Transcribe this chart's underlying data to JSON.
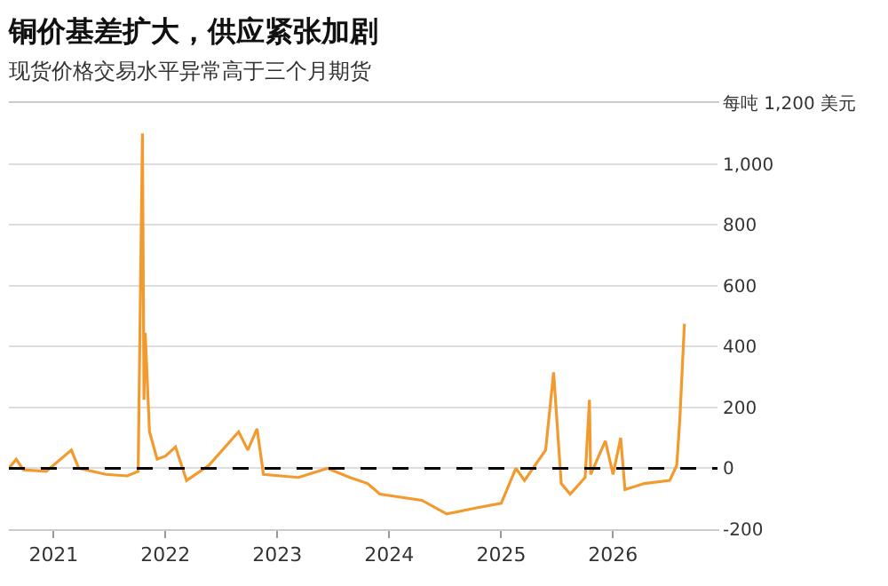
{
  "chart_data": {
    "type": "line",
    "title": "铜价基差扩大，供应紧张加剧",
    "subtitle": "现货价格交易水平异常高于三个月期货",
    "series": [
      {
        "color": "#f39a2e",
        "x": [
          "2020-08-08",
          "2020-09-01",
          "2020-09-24",
          "2020-12-08",
          "2021-02-28",
          "2021-03-24",
          "2021-06-20",
          "2021-08-29",
          "2021-10-04",
          "2021-10-18",
          "2021-10-23",
          "2021-10-27",
          "2021-11-10",
          "2021-12-05",
          "2022-01-01",
          "2022-02-03",
          "2022-03-11",
          "2022-05-23",
          "2022-08-28",
          "2022-09-27",
          "2022-10-27",
          "2022-11-17",
          "2023-03-11",
          "2023-06-14",
          "2023-08-26",
          "2023-10-23",
          "2023-12-02",
          "2024-04-17",
          "2024-07-07",
          "2024-10-12",
          "2025-01-01",
          "2025-02-18",
          "2025-03-18",
          "2025-05-26",
          "2025-06-21",
          "2025-07-16",
          "2025-08-14",
          "2025-10-02",
          "2025-10-16",
          "2025-10-20",
          "2025-12-07",
          "2026-01-01",
          "2026-01-26",
          "2026-02-09",
          "2026-04-13",
          "2026-07-05",
          "2026-07-28",
          "2026-08-07",
          "2026-08-22"
        ],
        "values": [
          0,
          30,
          -5,
          -10,
          60,
          0,
          -20,
          -25,
          -10,
          1100,
          225,
          445,
          120,
          30,
          40,
          70,
          -40,
          10,
          120,
          60,
          130,
          -20,
          -30,
          0,
          -30,
          -50,
          -85,
          -105,
          -150,
          -130,
          -115,
          0,
          -40,
          60,
          315,
          -50,
          -85,
          -30,
          225,
          -20,
          90,
          -20,
          100,
          -70,
          -50,
          -40,
          10,
          160,
          475
        ]
      }
    ],
    "xlim": [
      "2020-08-08",
      "2026-12-08"
    ],
    "xticks": [
      {
        "value": "2021-01-01",
        "label": "2021"
      },
      {
        "value": "2022-01-01",
        "label": "2022"
      },
      {
        "value": "2023-01-01",
        "label": "2023"
      },
      {
        "value": "2024-01-01",
        "label": "2024"
      },
      {
        "value": "2025-01-01",
        "label": "2025"
      },
      {
        "value": "2026-01-01",
        "label": "2026"
      }
    ],
    "ylim": [
      -200,
      1200
    ],
    "yticks": [
      -200,
      0,
      200,
      400,
      600,
      800,
      {
        "value": 1000,
        "label": "1,000"
      },
      {
        "value": 1200,
        "label": "每吨 1,200 美元"
      }
    ],
    "grid": "y",
    "line_style": "solid",
    "ref_lines": [
      {
        "axis": "y",
        "value": 0,
        "color": "#000000",
        "line_style": "dashed"
      }
    ]
  }
}
